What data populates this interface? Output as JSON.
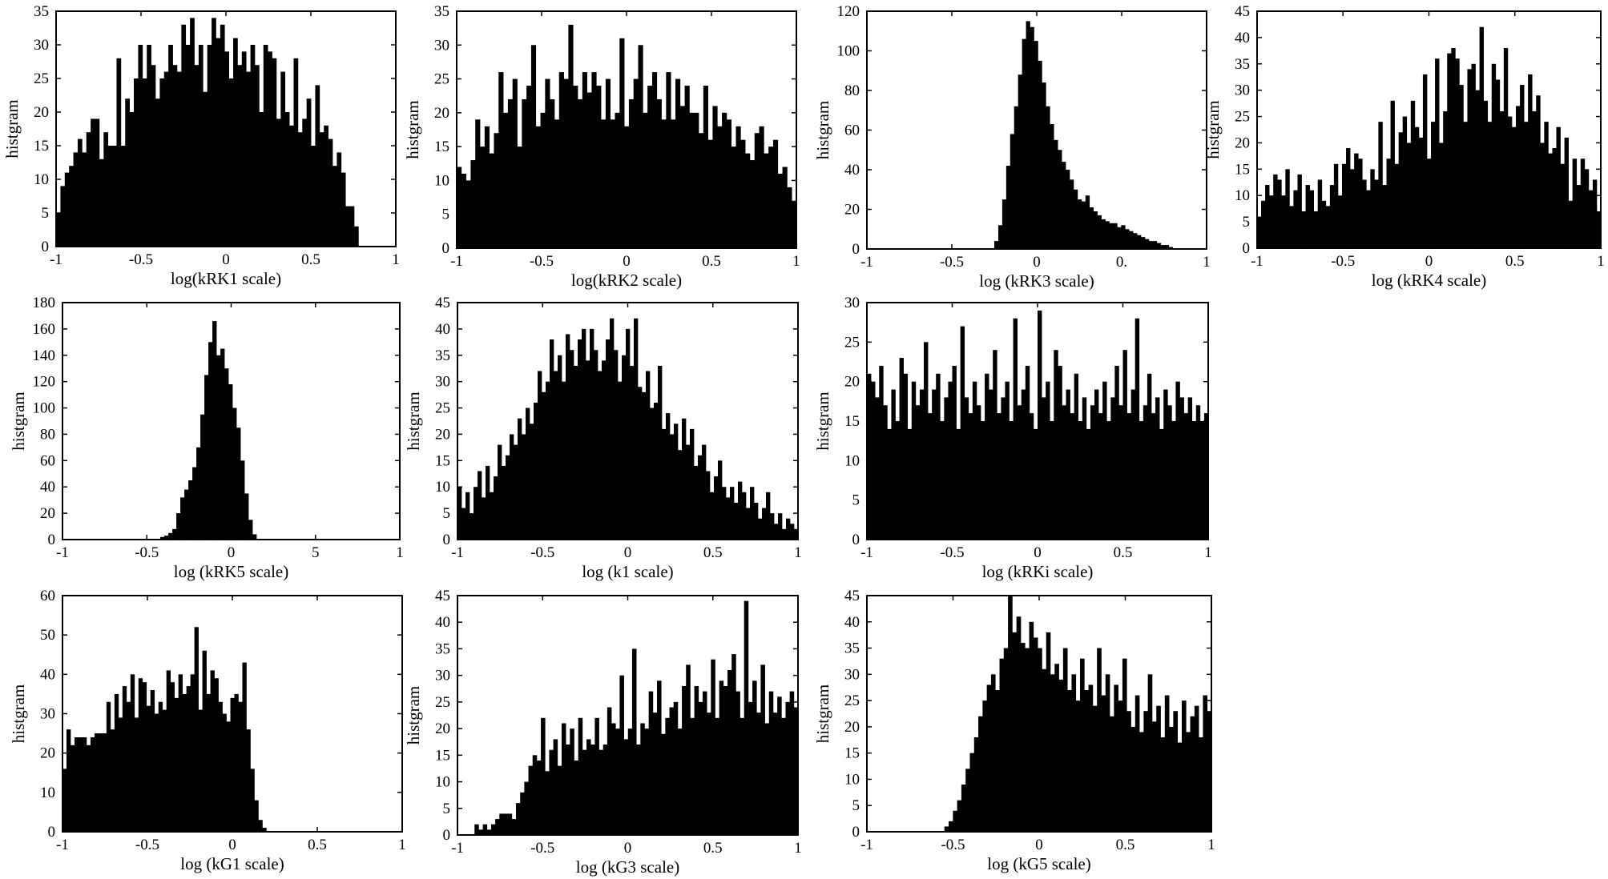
{
  "chart_data": [
    {
      "type": "bar",
      "xlabel": "log(kRK1 scale)",
      "ylabel": "histgram",
      "xlim": [
        -1,
        1
      ],
      "ylim": [
        0,
        35
      ],
      "xticks": [
        "-1",
        "-0.5",
        "0",
        "0.5",
        "1"
      ],
      "yticks": [
        "0",
        "5",
        "10",
        "15",
        "20",
        "25",
        "30",
        "35"
      ],
      "bin_range": [
        -1,
        0.78
      ],
      "values": [
        5,
        9,
        11,
        12,
        14,
        16,
        14,
        17,
        19,
        19,
        13,
        17,
        15,
        15,
        28,
        15,
        22,
        20,
        25,
        30,
        25,
        30,
        27,
        22,
        25,
        26,
        30,
        27,
        26,
        33,
        30,
        34,
        27,
        30,
        23,
        30,
        34,
        31,
        33,
        29,
        25,
        31,
        27,
        29,
        26,
        30,
        27,
        20,
        30,
        29,
        28,
        19,
        26,
        20,
        18,
        28,
        17,
        19,
        22,
        15,
        24,
        17,
        18,
        16,
        12,
        14,
        11,
        6,
        6,
        3
      ]
    },
    {
      "type": "bar",
      "xlabel": "log(kRK2 scale)",
      "ylabel": "histgram",
      "xlim": [
        -1,
        1
      ],
      "ylim": [
        0,
        35
      ],
      "xticks": [
        "-1",
        "-0.5",
        "0",
        "0.5",
        "1"
      ],
      "yticks": [
        "0",
        "5",
        "10",
        "15",
        "20",
        "25",
        "30",
        "35"
      ],
      "bin_range": [
        -1,
        1
      ],
      "values": [
        12,
        11,
        10,
        13,
        19,
        15,
        18,
        14,
        17,
        26,
        20,
        22,
        25,
        15,
        22,
        24,
        30,
        18,
        20,
        25,
        22,
        19,
        26,
        25,
        33,
        24,
        22,
        26,
        23,
        26,
        24,
        19,
        25,
        19,
        20,
        31,
        18,
        22,
        25,
        30,
        20,
        24,
        26,
        22,
        19,
        26,
        19,
        25,
        21,
        24,
        20,
        20,
        17,
        24,
        16,
        21,
        18,
        20,
        19,
        15,
        18,
        16,
        14,
        13,
        17,
        18,
        14,
        15,
        16,
        11,
        12,
        9,
        7
      ]
    },
    {
      "type": "bar",
      "xlabel": "log (kRK3 scale)",
      "ylabel": "histgram",
      "xlim": [
        -1,
        1
      ],
      "ylim": [
        0,
        120
      ],
      "xticks": [
        "-1",
        "-0.5",
        "0",
        "0.",
        "1"
      ],
      "yticks": [
        "0",
        "20",
        "40",
        "60",
        "80",
        "100",
        "120"
      ],
      "bin_range": [
        -0.25,
        0.8
      ],
      "values": [
        4,
        12,
        25,
        42,
        58,
        72,
        88,
        106,
        115,
        112,
        105,
        95,
        84,
        72,
        63,
        55,
        50,
        44,
        40,
        35,
        30,
        25,
        24,
        27,
        21,
        19,
        17,
        15,
        14,
        13,
        13,
        11,
        12,
        10,
        9,
        8,
        7,
        6,
        5,
        4,
        4,
        3,
        2,
        2,
        1
      ]
    },
    {
      "type": "bar",
      "xlabel": "log (kRK4 scale)",
      "ylabel": "histgram",
      "xlim": [
        -1,
        1
      ],
      "ylim": [
        0,
        45
      ],
      "xticks": [
        "-1",
        "-0.5",
        "0",
        "0.5",
        "1"
      ],
      "yticks": [
        "0",
        "5",
        "10",
        "15",
        "20",
        "25",
        "30",
        "35",
        "40",
        "45"
      ],
      "bin_range": [
        -1,
        1
      ],
      "values": [
        6,
        9,
        12,
        10,
        14,
        13,
        10,
        15,
        8,
        11,
        14,
        7,
        12,
        11,
        7,
        13,
        9,
        8,
        12,
        16,
        10,
        16,
        19,
        15,
        18,
        17,
        13,
        11,
        15,
        13,
        24,
        12,
        17,
        28,
        16,
        22,
        25,
        20,
        28,
        23,
        21,
        33,
        17,
        24,
        36,
        20,
        26,
        37,
        38,
        36,
        31,
        24,
        34,
        35,
        30,
        42,
        28,
        24,
        35,
        32,
        26,
        38,
        25,
        23,
        27,
        31,
        24,
        33,
        26,
        29,
        20,
        24,
        18,
        19,
        23,
        16,
        21,
        9,
        17,
        12,
        17,
        15,
        11,
        13,
        7
      ]
    },
    {
      "type": "bar",
      "xlabel": "log (kRK5 scale)",
      "ylabel": "histgram",
      "xlim": [
        -1,
        1
      ],
      "ylim": [
        0,
        180
      ],
      "xticks": [
        "-1",
        "-0.5",
        "0",
        "5",
        "1"
      ],
      "yticks": [
        "0",
        "20",
        "40",
        "60",
        "80",
        "100",
        "120",
        "140",
        "160",
        "180"
      ],
      "bin_range": [
        -0.42,
        0.15
      ],
      "values": [
        2,
        3,
        5,
        8,
        20,
        32,
        38,
        45,
        55,
        70,
        95,
        125,
        150,
        166,
        140,
        145,
        130,
        118,
        100,
        85,
        60,
        35,
        15,
        4
      ]
    },
    {
      "type": "bar",
      "xlabel": "log (k1 scale)",
      "ylabel": "histgram",
      "xlim": [
        -1,
        1
      ],
      "ylim": [
        0,
        45
      ],
      "xticks": [
        "-1",
        "-0.5",
        "0",
        "0.5",
        "1"
      ],
      "yticks": [
        "0",
        "5",
        "10",
        "15",
        "20",
        "25",
        "30",
        "35",
        "40",
        "45"
      ],
      "bin_range": [
        -1,
        1
      ],
      "values": [
        10,
        6,
        9,
        5,
        10,
        13,
        8,
        14,
        9,
        12,
        18,
        14,
        16,
        20,
        18,
        23,
        20,
        25,
        22,
        26,
        32,
        28,
        30,
        38,
        32,
        35,
        30,
        39,
        36,
        33,
        38,
        40,
        34,
        40,
        36,
        32,
        34,
        38,
        42,
        36,
        30,
        35,
        40,
        33,
        42,
        29,
        28,
        32,
        25,
        26,
        33,
        21,
        24,
        20,
        22,
        17,
        23,
        18,
        21,
        14,
        16,
        18,
        13,
        9,
        12,
        15,
        10,
        8,
        10,
        7,
        11,
        9,
        6,
        10,
        7,
        4,
        6,
        9,
        5,
        3,
        5,
        2,
        4,
        3,
        2
      ]
    },
    {
      "type": "bar",
      "xlabel": "log (kRKi scale)",
      "ylabel": "histgram",
      "xlim": [
        -1,
        1
      ],
      "ylim": [
        0,
        30
      ],
      "xticks": [
        "-1",
        "-0.5",
        "0",
        "0.5",
        "1"
      ],
      "yticks": [
        "0",
        "5",
        "10",
        "15",
        "20",
        "25",
        "30"
      ],
      "bin_range": [
        -1,
        1
      ],
      "values": [
        21,
        20,
        18,
        22,
        17,
        14,
        19,
        15,
        23,
        21,
        14,
        20,
        17,
        19,
        25,
        16,
        19,
        21,
        15,
        18,
        20,
        22,
        14,
        27,
        18,
        16,
        20,
        17,
        15,
        21,
        19,
        24,
        16,
        18,
        20,
        15,
        28,
        17,
        19,
        22,
        16,
        14,
        29,
        18,
        20,
        15,
        24,
        22,
        17,
        19,
        16,
        21,
        15,
        18,
        14,
        17,
        19,
        16,
        20,
        15,
        18,
        22,
        17,
        24,
        16,
        19,
        28,
        15,
        17,
        21,
        16,
        18,
        14,
        19,
        17,
        15,
        20,
        18,
        16,
        18,
        15,
        17,
        15,
        16
      ]
    },
    {
      "type": "bar",
      "xlabel": "log (kG1 scale)",
      "ylabel": "histgram",
      "xlim": [
        -1,
        1
      ],
      "ylim": [
        0,
        60
      ],
      "xticks": [
        "-1",
        "-0.5",
        "0",
        "0.5",
        "1"
      ],
      "yticks": [
        "0",
        "10",
        "20",
        "30",
        "40",
        "50",
        "60"
      ],
      "bin_range": [
        -1,
        0.2
      ],
      "values": [
        16,
        26,
        22,
        24,
        24,
        24,
        22,
        24,
        25,
        25,
        25,
        33,
        26,
        35,
        29,
        37,
        33,
        40,
        29,
        39,
        38,
        32,
        36,
        30,
        33,
        31,
        41,
        38,
        34,
        40,
        35,
        37,
        40,
        52,
        31,
        46,
        35,
        41,
        39,
        33,
        30,
        28,
        34,
        35,
        33,
        43,
        26,
        16,
        8,
        3,
        1
      ]
    },
    {
      "type": "bar",
      "xlabel": "log (kG3 scale)",
      "ylabel": "histgram",
      "xlim": [
        -1,
        1
      ],
      "ylim": [
        0,
        45
      ],
      "xticks": [
        "-1",
        "-0.5",
        "0",
        "0.5",
        "1"
      ],
      "yticks": [
        "0",
        "5",
        "10",
        "15",
        "20",
        "25",
        "30",
        "35",
        "40",
        "45"
      ],
      "bin_range": [
        -0.9,
        1
      ],
      "values": [
        2,
        1,
        2,
        1,
        2,
        3,
        4,
        4,
        4,
        3,
        6,
        8,
        10,
        13,
        15,
        14,
        22,
        12,
        16,
        18,
        13,
        21,
        17,
        20,
        14,
        22,
        16,
        18,
        17,
        22,
        16,
        17,
        24,
        21,
        20,
        30,
        18,
        20,
        35,
        17,
        21,
        20,
        27,
        23,
        29,
        19,
        22,
        24,
        25,
        20,
        28,
        32,
        22,
        28,
        25,
        27,
        23,
        33,
        22,
        29,
        28,
        31,
        34,
        27,
        22,
        44,
        25,
        29,
        23,
        32,
        21,
        27,
        23,
        26,
        22,
        25,
        27,
        24
      ]
    },
    {
      "type": "bar",
      "xlabel": "log (kG5 scale)",
      "ylabel": "histgram",
      "xlim": [
        -1,
        1
      ],
      "ylim": [
        0,
        45
      ],
      "xticks": [
        "-1",
        "-0.5",
        "0",
        "0.5",
        "1"
      ],
      "yticks": [
        "0",
        "5",
        "10",
        "15",
        "20",
        "25",
        "30",
        "35",
        "40",
        "45"
      ],
      "bin_range": [
        -0.55,
        1
      ],
      "values": [
        1,
        2,
        4,
        6,
        9,
        12,
        15,
        18,
        22,
        25,
        28,
        30,
        27,
        33,
        35,
        45,
        38,
        41,
        36,
        35,
        40,
        37,
        35,
        31,
        38,
        30,
        32,
        29,
        35,
        27,
        30,
        25,
        33,
        27,
        28,
        24,
        35,
        26,
        30,
        22,
        28,
        25,
        33,
        23,
        20,
        26,
        19,
        23,
        30,
        21,
        24,
        18,
        26,
        20,
        23,
        17,
        25,
        19,
        22,
        24,
        18,
        26,
        23
      ]
    }
  ]
}
